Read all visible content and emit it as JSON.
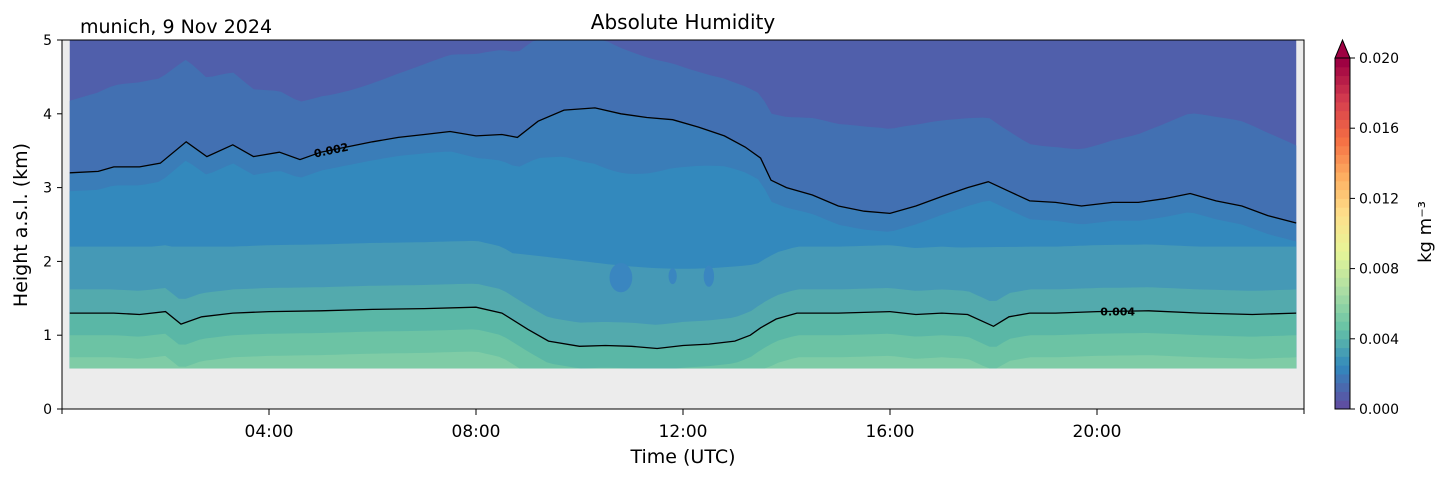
{
  "chart_data": {
    "type": "heatmap",
    "title": "Absolute Humidity",
    "subtitle": "munich, 9 Nov 2024",
    "xlabel": "Time (UTC)",
    "ylabel": "Height a.s.l. (km)",
    "xlim": [
      0,
      24
    ],
    "ylim": [
      0,
      5
    ],
    "x_ticks": [
      4,
      8,
      12,
      16,
      20
    ],
    "x_tick_labels": [
      "04:00",
      "08:00",
      "12:00",
      "16:00",
      "20:00"
    ],
    "y_ticks": [
      0,
      1,
      2,
      3,
      4,
      5
    ],
    "y_tick_labels": [
      "0",
      "1",
      "2",
      "3",
      "4",
      "5"
    ],
    "data_start_time": 0.15,
    "data_end_time": 23.85,
    "data_min_height": 0.55,
    "colorbar": {
      "label": "kg m⁻³",
      "range": [
        0,
        0.02
      ],
      "ticks": [
        0,
        0.004,
        0.008,
        0.012,
        0.016,
        0.02
      ],
      "tick_labels": [
        "0.000",
        "0.004",
        "0.008",
        "0.012",
        "0.016",
        "0.020"
      ],
      "extend": "max",
      "colors": [
        "#5e4fa2",
        "#3288bd",
        "#66c2a5",
        "#abdda4",
        "#e6f598",
        "#fee08b",
        "#fdae61",
        "#f46d43",
        "#d53e4f",
        "#9e0142"
      ]
    },
    "contours": [
      {
        "level": 0.002,
        "label": "0.002",
        "label_time": 5.2,
        "times": [
          0.15,
          0.7,
          1.0,
          1.5,
          1.9,
          2.4,
          2.8,
          3.3,
          3.7,
          4.2,
          4.6,
          5.0,
          5.5,
          6.0,
          6.5,
          7.0,
          7.5,
          8.0,
          8.5,
          8.8,
          9.2,
          9.7,
          10.3,
          10.8,
          11.3,
          11.8,
          12.3,
          12.8,
          13.2,
          13.5,
          13.7,
          14.0,
          14.5,
          15.0,
          15.5,
          16.0,
          16.5,
          17.0,
          17.5,
          17.9,
          18.3,
          18.7,
          19.2,
          19.7,
          20.3,
          20.8,
          21.3,
          21.8,
          22.3,
          22.8,
          23.3,
          23.85
        ],
        "heights": [
          3.2,
          3.22,
          3.28,
          3.28,
          3.33,
          3.62,
          3.42,
          3.58,
          3.42,
          3.48,
          3.38,
          3.48,
          3.55,
          3.62,
          3.68,
          3.72,
          3.76,
          3.7,
          3.72,
          3.68,
          3.9,
          4.05,
          4.08,
          4.0,
          3.95,
          3.92,
          3.82,
          3.7,
          3.55,
          3.4,
          3.1,
          3.0,
          2.9,
          2.75,
          2.68,
          2.65,
          2.75,
          2.88,
          3.0,
          3.08,
          2.95,
          2.82,
          2.8,
          2.75,
          2.8,
          2.8,
          2.85,
          2.92,
          2.82,
          2.75,
          2.62,
          2.52
        ]
      },
      {
        "level": 0.004,
        "label": "0.004",
        "label_time": 20.4,
        "times": [
          0.15,
          1.0,
          1.5,
          2.0,
          2.3,
          2.7,
          3.3,
          4.0,
          5.0,
          6.0,
          7.0,
          8.0,
          8.5,
          9.0,
          9.4,
          10.0,
          10.5,
          11.0,
          11.5,
          12.0,
          12.5,
          13.0,
          13.3,
          13.5,
          13.8,
          14.2,
          15.0,
          16.0,
          16.5,
          17.0,
          17.5,
          18.0,
          18.3,
          18.7,
          19.2,
          20.0,
          21.0,
          22.0,
          23.0,
          23.85
        ],
        "heights": [
          1.3,
          1.3,
          1.28,
          1.32,
          1.15,
          1.25,
          1.3,
          1.32,
          1.33,
          1.35,
          1.36,
          1.38,
          1.3,
          1.08,
          0.92,
          0.85,
          0.86,
          0.85,
          0.82,
          0.86,
          0.88,
          0.92,
          1.0,
          1.1,
          1.22,
          1.3,
          1.3,
          1.32,
          1.28,
          1.3,
          1.28,
          1.12,
          1.25,
          1.3,
          1.3,
          1.32,
          1.33,
          1.3,
          1.28,
          1.3
        ]
      }
    ]
  }
}
